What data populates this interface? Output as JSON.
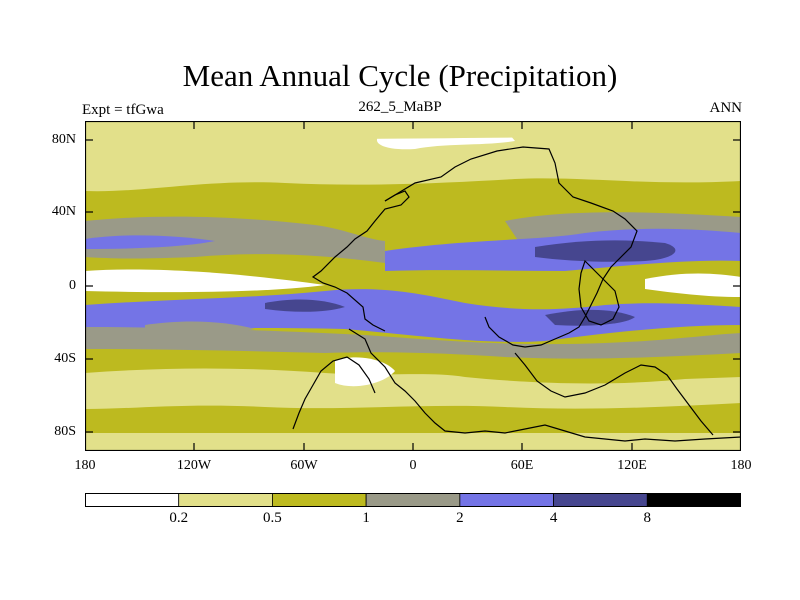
{
  "title": "Mean Annual Cycle (Precipitation)",
  "subtitle": "262_5_MaBP",
  "left_label": "Expt = tfGwa",
  "right_label": "ANN",
  "y_ticks": [
    "80N",
    "40N",
    "0",
    "40S",
    "80S"
  ],
  "x_ticks": [
    "180",
    "120W",
    "60W",
    "0",
    "60E",
    "120E",
    "180"
  ],
  "legend": {
    "labels": [
      "0.2",
      "0.5",
      "1",
      "2",
      "4",
      "8"
    ],
    "colors": [
      "#ffffff",
      "#e2e08a",
      "#bdba1f",
      "#9a9a88",
      "#7474e6",
      "#46468f",
      "#000000"
    ]
  }
}
